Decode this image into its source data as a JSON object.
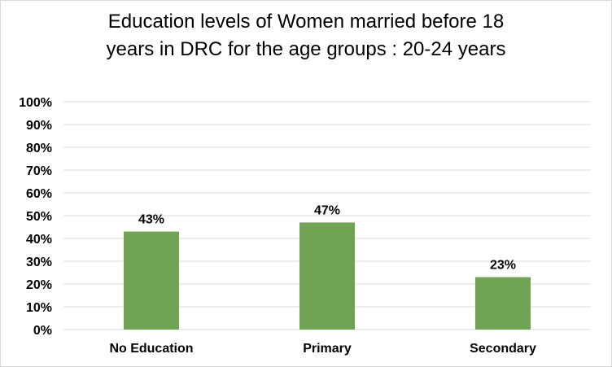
{
  "chart_data": {
    "type": "bar",
    "title_line1": "Education levels of Women married before 18",
    "title_line2": "years in DRC for the age groups : 20-24 years",
    "categories": [
      "No Education",
      "Primary",
      "Secondary"
    ],
    "values": [
      43,
      47,
      23
    ],
    "data_labels": [
      "43%",
      "47%",
      "23%"
    ],
    "y_ticks": [
      "0%",
      "10%",
      "20%",
      "30%",
      "40%",
      "50%",
      "60%",
      "70%",
      "80%",
      "90%",
      "100%"
    ],
    "ylim": [
      0,
      100
    ],
    "grid": true,
    "bar_color": "#70a353",
    "grid_color": "#d9d9d9"
  }
}
